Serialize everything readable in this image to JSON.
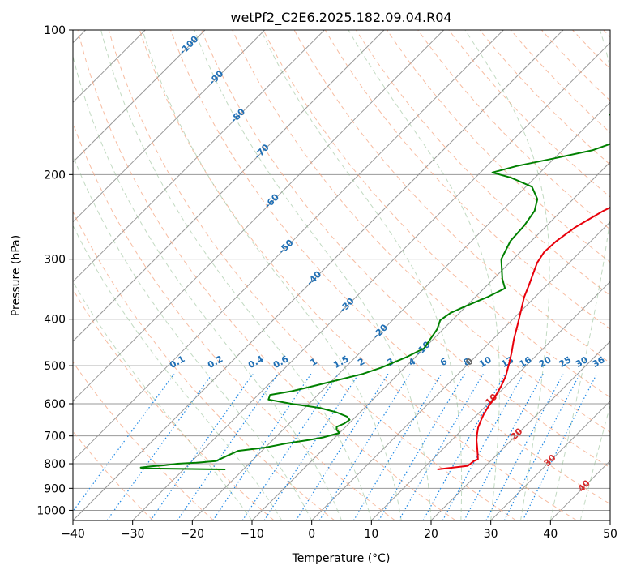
{
  "chart_data": {
    "type": "line",
    "title": "wetPf2_C2E6.2025.182.09.04.R04",
    "xlabel": "Temperature (°C)",
    "ylabel": "Pressure (hPa)",
    "xlim": [
      -40,
      50
    ],
    "ylim": [
      1050,
      100
    ],
    "y_scale": "log",
    "x_ticks": [
      {
        "value": -40,
        "label": "−40"
      },
      {
        "value": -30,
        "label": "−30"
      },
      {
        "value": -20,
        "label": "−20"
      },
      {
        "value": -10,
        "label": "−10"
      },
      {
        "value": 0,
        "label": "0"
      },
      {
        "value": 10,
        "label": "10"
      },
      {
        "value": 20,
        "label": "20"
      },
      {
        "value": 30,
        "label": "30"
      },
      {
        "value": 40,
        "label": "40"
      },
      {
        "value": 50,
        "label": "50"
      }
    ],
    "y_ticks": [
      {
        "value": 100,
        "label": "100"
      },
      {
        "value": 200,
        "label": "200"
      },
      {
        "value": 300,
        "label": "300"
      },
      {
        "value": 400,
        "label": "400"
      },
      {
        "value": 500,
        "label": "500"
      },
      {
        "value": 600,
        "label": "600"
      },
      {
        "value": 700,
        "label": "700"
      },
      {
        "value": 800,
        "label": "800"
      },
      {
        "value": 900,
        "label": "900"
      },
      {
        "value": 1000,
        "label": "1000"
      }
    ],
    "grid": true,
    "series": [
      {
        "key": "temperature",
        "color": "#e8000b",
        "points": [
          [
            12.5,
            822
          ],
          [
            17,
            808
          ],
          [
            17.2,
            790
          ],
          [
            17.6,
            783
          ],
          [
            16.5,
            760
          ],
          [
            15.5,
            740
          ],
          [
            14.2,
            715
          ],
          [
            13.2,
            693
          ],
          [
            12.3,
            672
          ],
          [
            11.6,
            650
          ],
          [
            11.0,
            630
          ],
          [
            10.5,
            607
          ],
          [
            10.0,
            580
          ],
          [
            9.2,
            550
          ],
          [
            8.3,
            525
          ],
          [
            6.8,
            495
          ],
          [
            5.4,
            470
          ],
          [
            3.5,
            440
          ],
          [
            1.8,
            412
          ],
          [
            0.0,
            385
          ],
          [
            -1.8,
            360
          ],
          [
            -3.0,
            340
          ],
          [
            -4.2,
            322
          ],
          [
            -5.4,
            305
          ],
          [
            -6.0,
            290
          ],
          [
            -5.8,
            275
          ],
          [
            -5.0,
            258
          ],
          [
            -3.0,
            238
          ],
          [
            0.0,
            220
          ],
          [
            4.0,
            205
          ],
          [
            6.5,
            195
          ],
          [
            7.5,
            185
          ],
          [
            8.0,
            175
          ],
          [
            8.5,
            165
          ],
          [
            9.5,
            155
          ],
          [
            11.5,
            145
          ],
          [
            12.5,
            135
          ],
          [
            13.2,
            127
          ],
          [
            14.5,
            121
          ],
          [
            16.5,
            116
          ],
          [
            18.5,
            112
          ],
          [
            20.5,
            108
          ],
          [
            21.5,
            105
          ],
          [
            22.5,
            103
          ],
          [
            23.5,
            100
          ]
        ]
      },
      {
        "key": "dewpoint",
        "color": "#008000",
        "points": [
          [
            -23,
            822
          ],
          [
            -30,
            820
          ],
          [
            -37,
            818
          ],
          [
            -37.5,
            815
          ],
          [
            -36,
            810
          ],
          [
            -34,
            806
          ],
          [
            -32,
            800
          ],
          [
            -29,
            796
          ],
          [
            -26,
            790
          ],
          [
            -25,
            770
          ],
          [
            -24,
            752
          ],
          [
            -20,
            740
          ],
          [
            -17,
            725
          ],
          [
            -14,
            714
          ],
          [
            -12,
            705
          ],
          [
            -10,
            690
          ],
          [
            -11,
            680
          ],
          [
            -11.5,
            670
          ],
          [
            -10.8,
            660
          ],
          [
            -10.5,
            648
          ],
          [
            -11.5,
            638
          ],
          [
            -14,
            625
          ],
          [
            -17.5,
            612
          ],
          [
            -23,
            600
          ],
          [
            -27.5,
            588
          ],
          [
            -28,
            575
          ],
          [
            -25,
            565
          ],
          [
            -23,
            555
          ],
          [
            -20,
            540
          ],
          [
            -16,
            520
          ],
          [
            -14,
            505
          ],
          [
            -11.5,
            480
          ],
          [
            -10,
            460
          ],
          [
            -10.5,
            440
          ],
          [
            -11,
            420
          ],
          [
            -12,
            402
          ],
          [
            -11.5,
            388
          ],
          [
            -10,
            375
          ],
          [
            -8.0,
            360
          ],
          [
            -6.5,
            345
          ],
          [
            -8.5,
            330
          ],
          [
            -12,
            300
          ],
          [
            -13.5,
            275
          ],
          [
            -13.8,
            255
          ],
          [
            -14.5,
            238
          ],
          [
            -16,
            225
          ],
          [
            -19,
            212
          ],
          [
            -24,
            203
          ],
          [
            -28,
            198
          ],
          [
            -25,
            192
          ],
          [
            -20,
            185
          ],
          [
            -15,
            178
          ],
          [
            -12,
            170
          ],
          [
            -12.5,
            162
          ],
          [
            -16,
            155
          ],
          [
            -18,
            150
          ],
          [
            -15,
            143
          ],
          [
            -11,
            135
          ],
          [
            -8,
            127
          ],
          [
            -4.5,
            120
          ],
          [
            -5,
            112
          ],
          [
            -5.5,
            108
          ],
          [
            -2,
            103
          ],
          [
            0,
            100
          ]
        ]
      }
    ],
    "mixing_ratio_labels": [
      "0.1",
      "0.2",
      "0.4",
      "0.6",
      "1",
      "1.5",
      "2",
      "3",
      "4",
      "6",
      "8",
      "10",
      "13",
      "16",
      "20",
      "25",
      "30",
      "36"
    ],
    "dry_adiabat_labels": [
      "-100",
      "-90",
      "-80",
      "-70",
      "-60",
      "-50",
      "-40",
      "-30",
      "-20",
      "-10",
      "0",
      "10",
      "20",
      "30",
      "40"
    ],
    "colors": {
      "temperature": "#e8000b",
      "dewpoint": "#008000",
      "isotherm": "#999999",
      "isobar": "#999999",
      "dry_adiabat": "#f4a582",
      "moist_adiabat": "#8fbc8f",
      "mixing_ratio": "#1e88e5",
      "label_blue": "#1f6fb5",
      "label_red": "#d62728",
      "label_gray": "#666666"
    }
  }
}
